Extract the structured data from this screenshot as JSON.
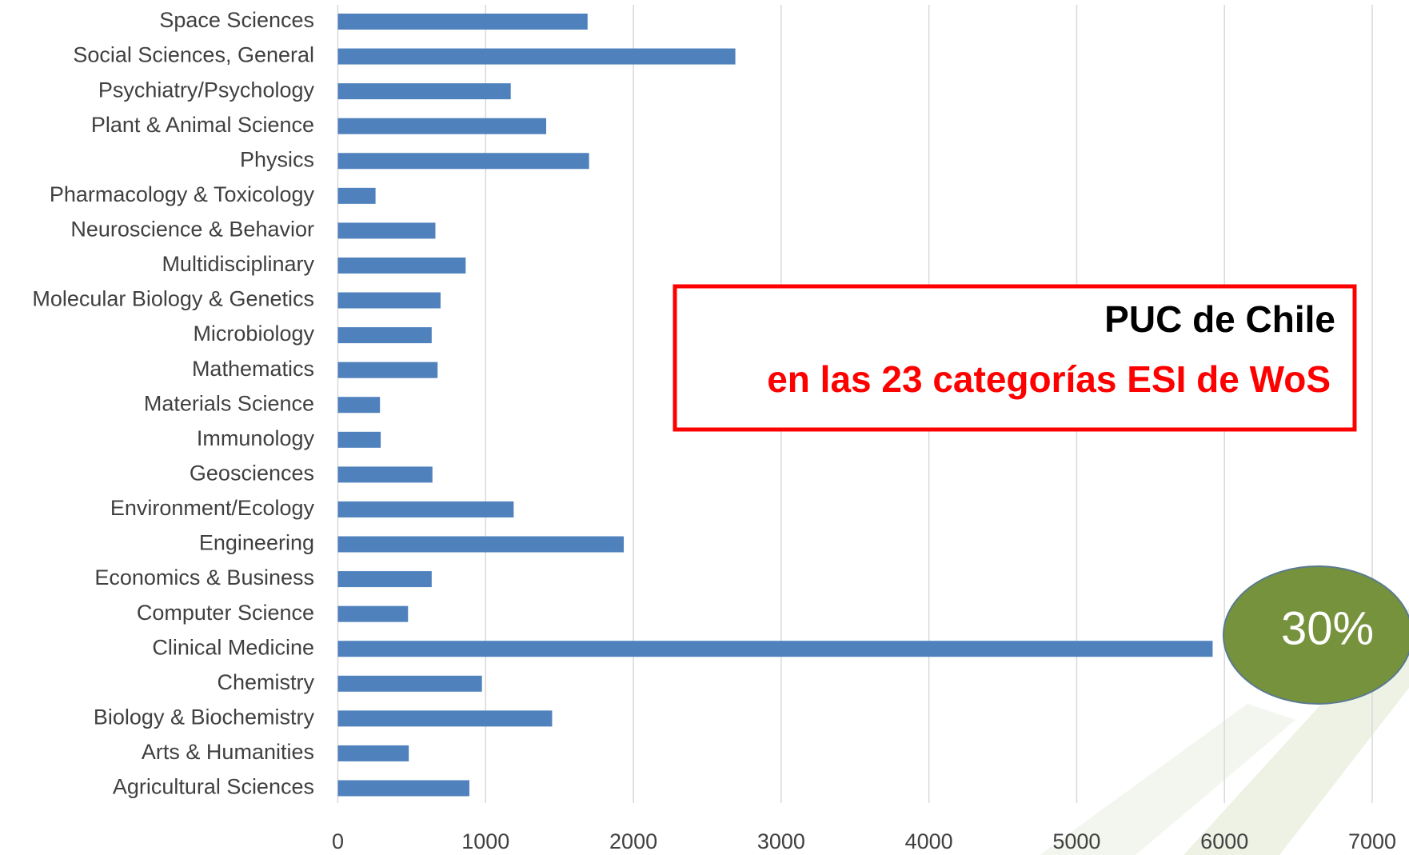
{
  "chart_data": {
    "type": "barh",
    "categories": [
      "Space Sciences",
      "Social Sciences, General",
      "Psychiatry/Psychology",
      "Plant & Animal Science",
      "Physics",
      "Pharmacology & Toxicology",
      "Neuroscience & Behavior",
      "Multidisciplinary",
      "Molecular Biology & Genetics",
      "Microbiology",
      "Mathematics",
      "Materials Science",
      "Immunology",
      "Geosciences",
      "Environment/Ecology",
      "Engineering",
      "Economics & Business",
      "Computer Science",
      "Clinical Medicine",
      "Chemistry",
      "Biology & Biochemistry",
      "Arts & Humanities",
      "Agricultural Sciences"
    ],
    "values": [
      1690,
      2690,
      1170,
      1410,
      1700,
      255,
      660,
      865,
      695,
      635,
      675,
      285,
      290,
      640,
      1190,
      1935,
      635,
      475,
      5920,
      975,
      1450,
      480,
      890
    ],
    "color": "#4f81bd",
    "xlim": [
      0,
      7000
    ],
    "xticks": [
      0,
      1000,
      2000,
      3000,
      4000,
      5000,
      6000,
      7000
    ],
    "grid": true,
    "annotations": [
      "PUC de Chile",
      "en las 23 categorías ESI de WoS",
      "30%"
    ],
    "annotation_colors": [
      "#000000",
      "#ff0000",
      "#ffffff"
    ],
    "badge_color": "#76923c"
  }
}
